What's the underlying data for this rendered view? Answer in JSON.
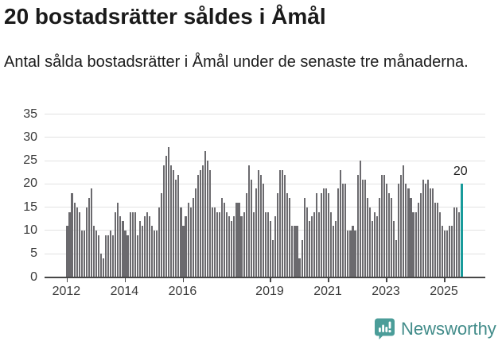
{
  "header": {
    "title": "20 bostadsrätter såldes i Åmål",
    "subtitle": "Antal sålda bostadsrätter i Åmål under de senaste tre månaderna."
  },
  "chart_data": {
    "type": "bar",
    "title": "20 bostadsrätter såldes i Åmål",
    "subtitle": "Antal sålda bostadsrätter i Åmål under de senaste tre månaderna.",
    "x_start": "2012-01",
    "x_end": "2025-08",
    "ylim": [
      0,
      35
    ],
    "yticks": [
      0,
      5,
      10,
      15,
      20,
      25,
      30,
      35
    ],
    "grid": true,
    "legend": "none",
    "bar_color": "#6b6a6e",
    "highlight_color": "#189b9b",
    "highlight_last_bar": true,
    "annotation": {
      "text": "20",
      "value": 20
    },
    "xticks": [
      {
        "label": "2012",
        "index": 0
      },
      {
        "label": "2014",
        "index": 24
      },
      {
        "label": "2016",
        "index": 48
      },
      {
        "label": "2019",
        "index": 84
      },
      {
        "label": "2021",
        "index": 108
      },
      {
        "label": "2023",
        "index": 132
      },
      {
        "label": "2025",
        "index": 156
      }
    ],
    "values": [
      11,
      14,
      18,
      16,
      15,
      14,
      10,
      10,
      15,
      17,
      19,
      11,
      10,
      9,
      5,
      4,
      9,
      9,
      10,
      9,
      14,
      16,
      13,
      12,
      10,
      9,
      14,
      14,
      14,
      9,
      12,
      11,
      13,
      14,
      13,
      11,
      10,
      10,
      15,
      18,
      24,
      26,
      28,
      24,
      23,
      21,
      22,
      15,
      11,
      13,
      16,
      15,
      17,
      19,
      22,
      23,
      24,
      27,
      25,
      23,
      15,
      15,
      14,
      14,
      17,
      16,
      14,
      13,
      12,
      13,
      16,
      16,
      13,
      14,
      18,
      24,
      21,
      14,
      19,
      23,
      22,
      20,
      14,
      14,
      12,
      8,
      13,
      18,
      23,
      23,
      22,
      18,
      17,
      11,
      11,
      11,
      4,
      8,
      17,
      15,
      12,
      13,
      14,
      18,
      14,
      18,
      19,
      19,
      18,
      14,
      11,
      12,
      19,
      23,
      20,
      20,
      10,
      10,
      11,
      10,
      22,
      25,
      21,
      21,
      17,
      15,
      12,
      14,
      13,
      17,
      22,
      22,
      20,
      18,
      17,
      12,
      8,
      20,
      22,
      24,
      20,
      19,
      17,
      14,
      14,
      16,
      18,
      21,
      20,
      21,
      19,
      19,
      16,
      16,
      14,
      11,
      10,
      10,
      11,
      11,
      15,
      15,
      14,
      20
    ]
  },
  "footer": {
    "brand": "Newsworthy"
  },
  "colors": {
    "bar": "#6b6a6e",
    "highlight": "#189b9b",
    "gridline": "#e2e2e2",
    "axis": "#474747",
    "brand_teal": "#428c8a",
    "logo_teal": "#4b9d99"
  }
}
